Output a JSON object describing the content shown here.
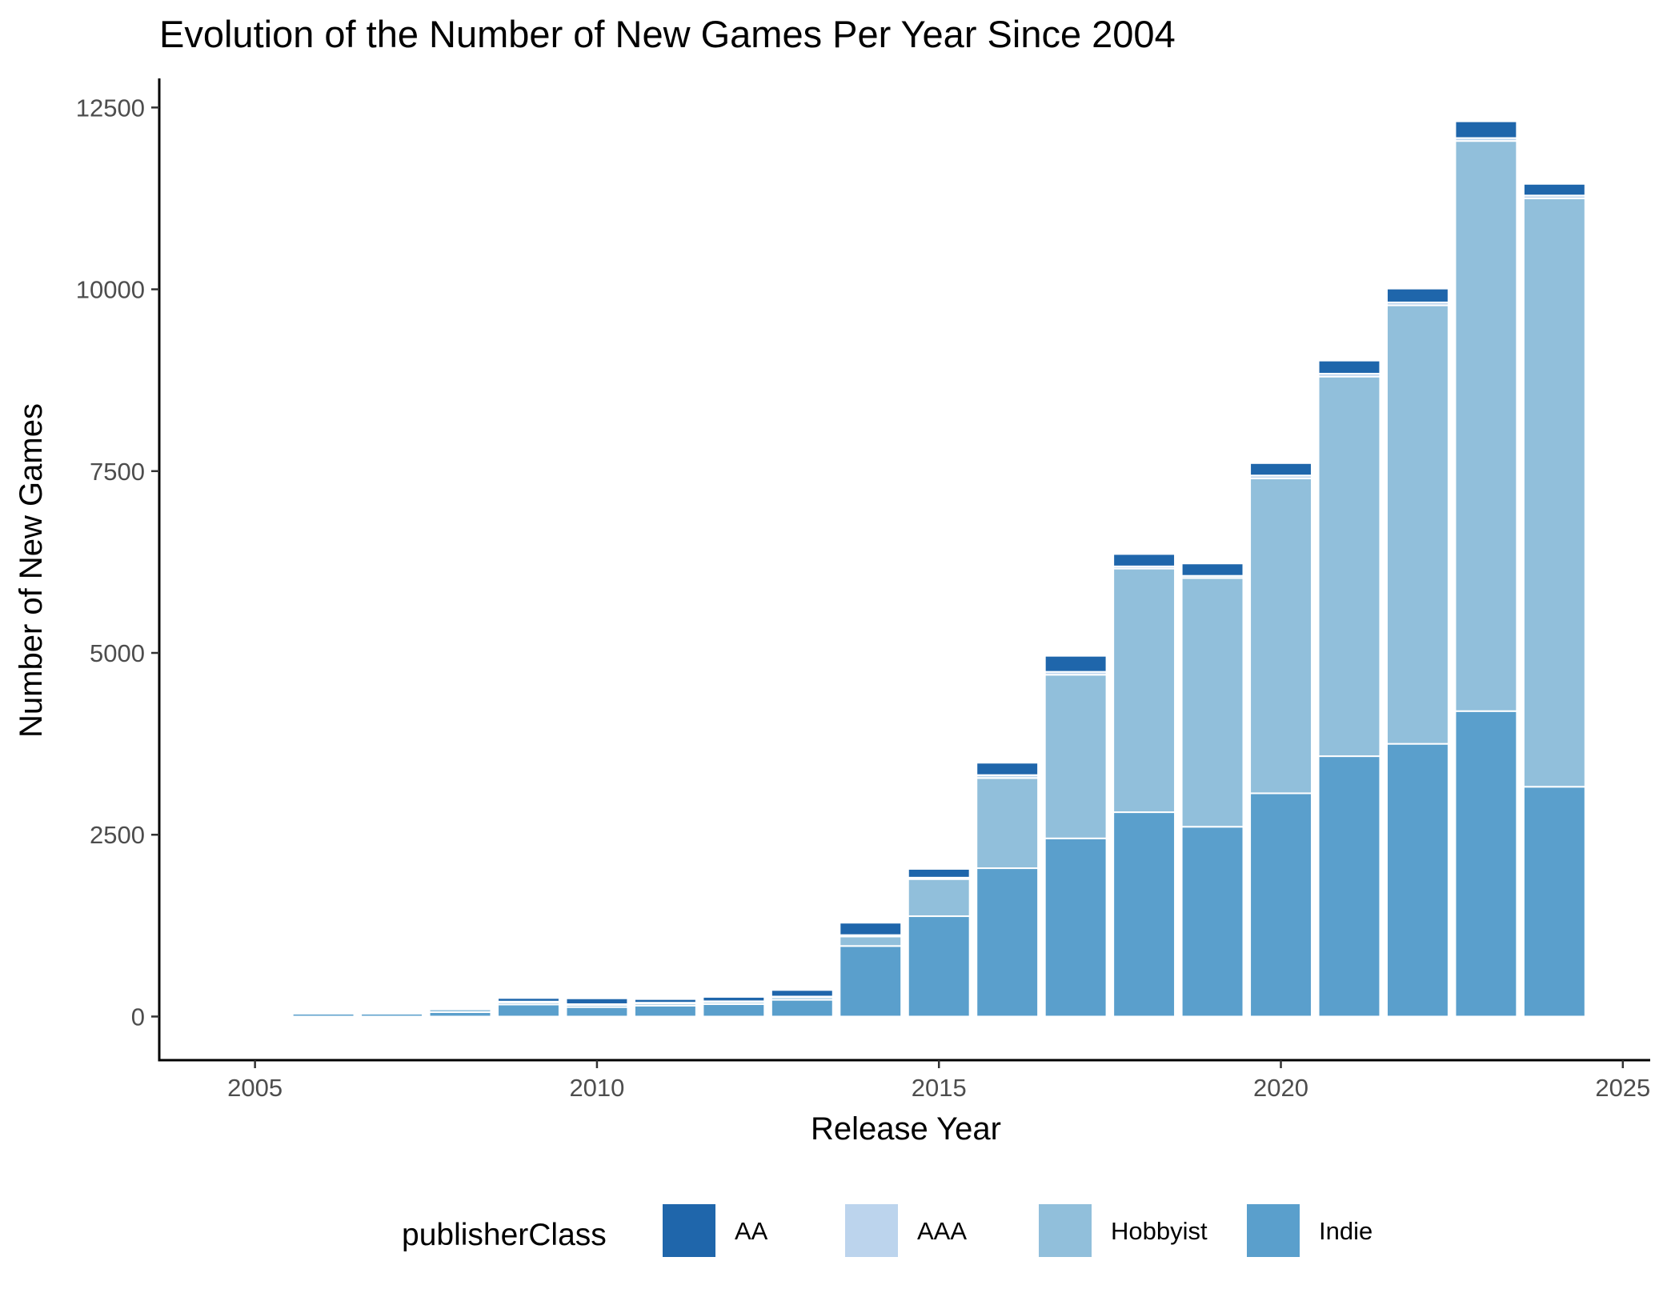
{
  "chart_data": {
    "type": "bar",
    "stacked": true,
    "title": "Evolution of the Number of New Games Per Year Since 2004",
    "xlabel": "Release Year",
    "ylabel": "Number of New Games",
    "x": [
      2005,
      2006,
      2007,
      2008,
      2009,
      2010,
      2011,
      2012,
      2013,
      2014,
      2015,
      2016,
      2017,
      2018,
      2019,
      2020,
      2021,
      2022,
      2023,
      2024
    ],
    "xlim": [
      2003.6,
      2025.4
    ],
    "ylim": [
      -600,
      12900
    ],
    "x_ticks": [
      2005,
      2010,
      2015,
      2020,
      2025
    ],
    "y_ticks": [
      0,
      2500,
      5000,
      7500,
      10000,
      12500
    ],
    "grid": false,
    "legend": {
      "title": "publisherClass",
      "position": "bottom"
    },
    "series": [
      {
        "name": "Indie",
        "color": "#5a9fcc",
        "values": [
          5,
          40,
          40,
          60,
          165,
          130,
          150,
          170,
          230,
          970,
          1380,
          2040,
          2450,
          2810,
          2610,
          3070,
          3580,
          3750,
          4200,
          3160
        ]
      },
      {
        "name": "Hobbyist",
        "color": "#91bfdb",
        "values": [
          5,
          20,
          20,
          40,
          30,
          30,
          30,
          30,
          35,
          130,
          510,
          1240,
          2250,
          3350,
          3420,
          4330,
          5220,
          6030,
          7840,
          8090
        ]
      },
      {
        "name": "AAA",
        "color": "#bcd4ed",
        "values": [
          2,
          5,
          5,
          20,
          10,
          10,
          10,
          10,
          10,
          20,
          20,
          40,
          40,
          30,
          30,
          40,
          40,
          40,
          40,
          40
        ]
      },
      {
        "name": "AA",
        "color": "#1f66ab",
        "values": [
          3,
          10,
          20,
          20,
          50,
          80,
          50,
          60,
          90,
          170,
          120,
          170,
          220,
          170,
          170,
          170,
          180,
          190,
          230,
          160
        ]
      }
    ]
  }
}
